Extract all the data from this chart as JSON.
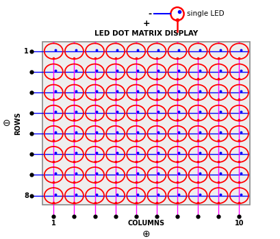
{
  "rows": 8,
  "cols": 10,
  "title": "LED DOT MATRIX DISPLAY",
  "led_color": "red",
  "row_line_color": "blue",
  "col_line_color": "#ff00ff",
  "dot_color": "black",
  "bg_color": "white",
  "matrix_bg": "#f0f0f0",
  "row_label_1": "1",
  "row_label_8": "8",
  "col_label_1": "1",
  "col_label_10": "10",
  "col_text": "COLUMNS",
  "row_text": "ROWS",
  "single_led_text": "single LED",
  "minus_symbol": "-",
  "plus_symbol_top": "+",
  "plus_symbol_bottom": "⊕",
  "minus_symbol_left": "⊖",
  "figsize": [
    4.1,
    3.49
  ],
  "dpi": 100
}
